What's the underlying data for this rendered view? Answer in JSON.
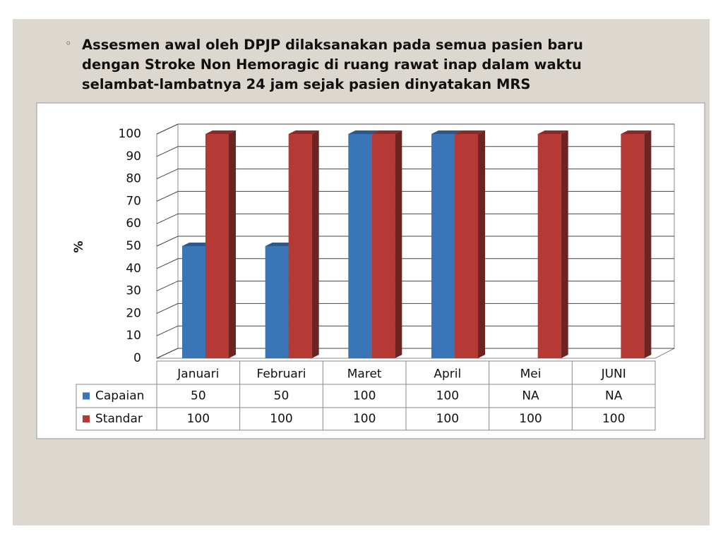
{
  "chart_data": {
    "type": "bar3d",
    "title": "Assesmen awal oleh DPJP dilaksanakan pada semua pasien baru dengan Stroke Non Hemoragic di ruang rawat inap  dalam waktu selambat-lambatnya 24 jam sejak  pasien dinyatakan MRS",
    "y_label": "%",
    "categories": [
      "Januari",
      "Februari",
      "Maret",
      "April",
      "Mei",
      "JUNI"
    ],
    "series": [
      {
        "name": "Capaian",
        "color": "#3a75b8",
        "values": [
          50,
          50,
          100,
          100,
          null,
          null
        ],
        "value_labels": [
          "50",
          "50",
          "100",
          "100",
          "NA",
          "NA"
        ]
      },
      {
        "name": "Standar",
        "color": "#b53a36",
        "values": [
          100,
          100,
          100,
          100,
          100,
          100
        ]
      }
    ],
    "ylim": [
      0,
      100
    ],
    "yticks": [
      0,
      10,
      20,
      30,
      40,
      50,
      60,
      70,
      80,
      90,
      100
    ],
    "grid": true
  }
}
